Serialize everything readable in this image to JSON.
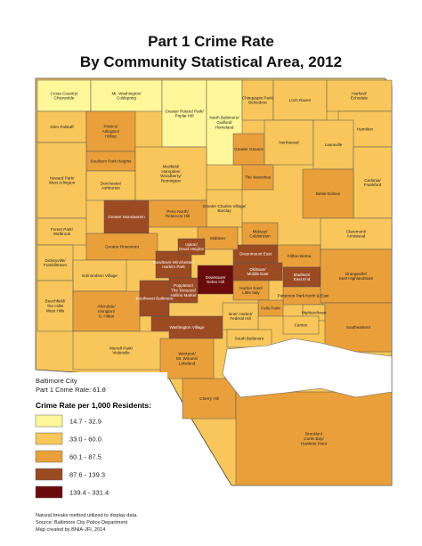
{
  "header": {
    "title_line1": "Part 1 Crime Rate",
    "title_line2": "By Community Statistical Area, 2012"
  },
  "areas": [
    {
      "name": "Cross-Country/Cheswolde",
      "class": 0
    },
    {
      "name": "Mt. Washington/Coldspring",
      "class": 0
    },
    {
      "name": "Greater Roland Park/Poplar Hill",
      "class": 0
    },
    {
      "name": "North Baltimore/Guilford/Homeland",
      "class": 0
    },
    {
      "name": "Chinquapin Park/Belvedere",
      "class": 1
    },
    {
      "name": "Loch Raven",
      "class": 1
    },
    {
      "name": "Harford/Echodale",
      "class": 1
    },
    {
      "name": "Glen-Falstaff",
      "class": 1
    },
    {
      "name": "Pimlico/Arlington/Hilltop",
      "class": 2
    },
    {
      "name": "Hamilton",
      "class": 1
    },
    {
      "name": "Greater Govans",
      "class": 2
    },
    {
      "name": "Northwood",
      "class": 1
    },
    {
      "name": "Lauraville",
      "class": 1
    },
    {
      "name": "Southern Park Heights",
      "class": 2
    },
    {
      "name": "Howard Park/West Arlington",
      "class": 1
    },
    {
      "name": "Dorchester/Ashburton",
      "class": 1
    },
    {
      "name": "Medfield/Hampden/Woodberry/Remington",
      "class": 1
    },
    {
      "name": "The Waverlies",
      "class": 2
    },
    {
      "name": "Cedonia/Frankford",
      "class": 1
    },
    {
      "name": "Greater Charles Village/Barclay",
      "class": 1
    },
    {
      "name": "Belair-Edison",
      "class": 2
    },
    {
      "name": "Forest Park/Walbrook",
      "class": 1
    },
    {
      "name": "Greater Mondawmin",
      "class": 3
    },
    {
      "name": "Penn North/Reservoir Hill",
      "class": 2
    },
    {
      "name": "Midway/Coldstream",
      "class": 2
    },
    {
      "name": "Claremont/Armistead",
      "class": 1
    },
    {
      "name": "Dickeyville/Franklintown",
      "class": 1
    },
    {
      "name": "Greenmount East",
      "class": 3
    },
    {
      "name": "Clifton-Berea",
      "class": 2
    },
    {
      "name": "Greater Rosemont",
      "class": 2
    },
    {
      "name": "Midtown",
      "class": 2
    },
    {
      "name": "Edmondson Village",
      "class": 1
    },
    {
      "name": "Sandtown-Winchester/Harlem Park",
      "class": 3
    },
    {
      "name": "Upton/Druid Heights",
      "class": 3
    },
    {
      "name": "Downtown/Seton Hill",
      "class": 4
    },
    {
      "name": "Oldtown/Middle East",
      "class": 3
    },
    {
      "name": "Madison/East End",
      "class": 3
    },
    {
      "name": "Patterson Park North & East",
      "class": 2
    },
    {
      "name": "Orangeville/East Highlandtown",
      "class": 2
    },
    {
      "name": "Beechfield/Ten Hills/West Hills",
      "class": 1
    },
    {
      "name": "Allendale/Irvington/S. Hilton",
      "class": 2
    },
    {
      "name": "Poppleton/The Terraces/Hollins Market",
      "class": 3
    },
    {
      "name": "Southwest Baltimore",
      "class": 3
    },
    {
      "name": "Harbor East/Little Italy",
      "class": 2
    },
    {
      "name": "Fells Point",
      "class": 2
    },
    {
      "name": "Highlandtown",
      "class": 1
    },
    {
      "name": "Washington Village",
      "class": 3
    },
    {
      "name": "Inner Harbor/Federal Hill",
      "class": 1
    },
    {
      "name": "Canton",
      "class": 1
    },
    {
      "name": "Morrell Park/Violetville",
      "class": 1
    },
    {
      "name": "South Baltimore",
      "class": 1
    },
    {
      "name": "Southeastern",
      "class": 2
    },
    {
      "name": "Westport/Mt. Winans/Lakeland",
      "class": 2
    },
    {
      "name": "Cherry Hill",
      "class": 2
    },
    {
      "name": "Brooklyn/Curtis Bay/Hawkins Point",
      "class": 2
    }
  ],
  "summary": {
    "line1": "Baltimore City",
    "line2": "Part 1 Crime Rate: 61.8"
  },
  "legend": {
    "title": "Crime Rate per 1,000 Residents:",
    "classes": [
      {
        "label": "14.7 - 32.9",
        "color": "#fff799"
      },
      {
        "label": "33.0 - 60.0",
        "color": "#f8c65a"
      },
      {
        "label": "60.1 - 87.5",
        "color": "#e9a03b"
      },
      {
        "label": "87.6 - 139.3",
        "color": "#9c4a22"
      },
      {
        "label": "139.4 - 331.4",
        "color": "#6a0b0b"
      }
    ]
  },
  "footer": {
    "line1": "Natural breaks method utilized to display data.",
    "line2": "Source: Baltimore City Police Department",
    "line3": "Map created by BNIA-JFI, 2014"
  }
}
